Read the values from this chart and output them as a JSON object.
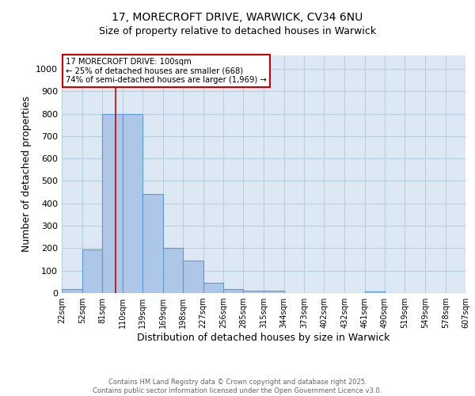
{
  "title_line1": "17, MORECROFT DRIVE, WARWICK, CV34 6NU",
  "title_line2": "Size of property relative to detached houses in Warwick",
  "xlabel": "Distribution of detached houses by size in Warwick",
  "ylabel": "Number of detached properties",
  "bin_labels": [
    "22sqm",
    "52sqm",
    "81sqm",
    "110sqm",
    "139sqm",
    "169sqm",
    "198sqm",
    "227sqm",
    "256sqm",
    "285sqm",
    "315sqm",
    "344sqm",
    "373sqm",
    "402sqm",
    "432sqm",
    "461sqm",
    "490sqm",
    "519sqm",
    "549sqm",
    "578sqm",
    "607sqm"
  ],
  "bin_edges": [
    22,
    52,
    81,
    110,
    139,
    169,
    198,
    227,
    256,
    285,
    315,
    344,
    373,
    402,
    432,
    461,
    490,
    519,
    549,
    578,
    607
  ],
  "bar_heights": [
    17,
    195,
    800,
    800,
    440,
    200,
    145,
    47,
    17,
    10,
    10,
    0,
    0,
    0,
    0,
    7,
    0,
    0,
    0,
    0
  ],
  "bar_color": "#aec6e8",
  "bar_edge_color": "#5b9bd5",
  "vline_x": 100,
  "vline_color": "#cc0000",
  "annotation_text": "17 MORECROFT DRIVE: 100sqm\n← 25% of detached houses are smaller (668)\n74% of semi-detached houses are larger (1,969) →",
  "annotation_box_color": "#ffffff",
  "annotation_box_edge": "#cc0000",
  "ylim": [
    0,
    1060
  ],
  "yticks": [
    0,
    100,
    200,
    300,
    400,
    500,
    600,
    700,
    800,
    900,
    1000
  ],
  "bg_color": "#ffffff",
  "plot_bg_color": "#dce9f5",
  "grid_color": "#b8cfe0",
  "footer_line1": "Contains HM Land Registry data © Crown copyright and database right 2025.",
  "footer_line2": "Contains public sector information licensed under the Open Government Licence v3.0."
}
